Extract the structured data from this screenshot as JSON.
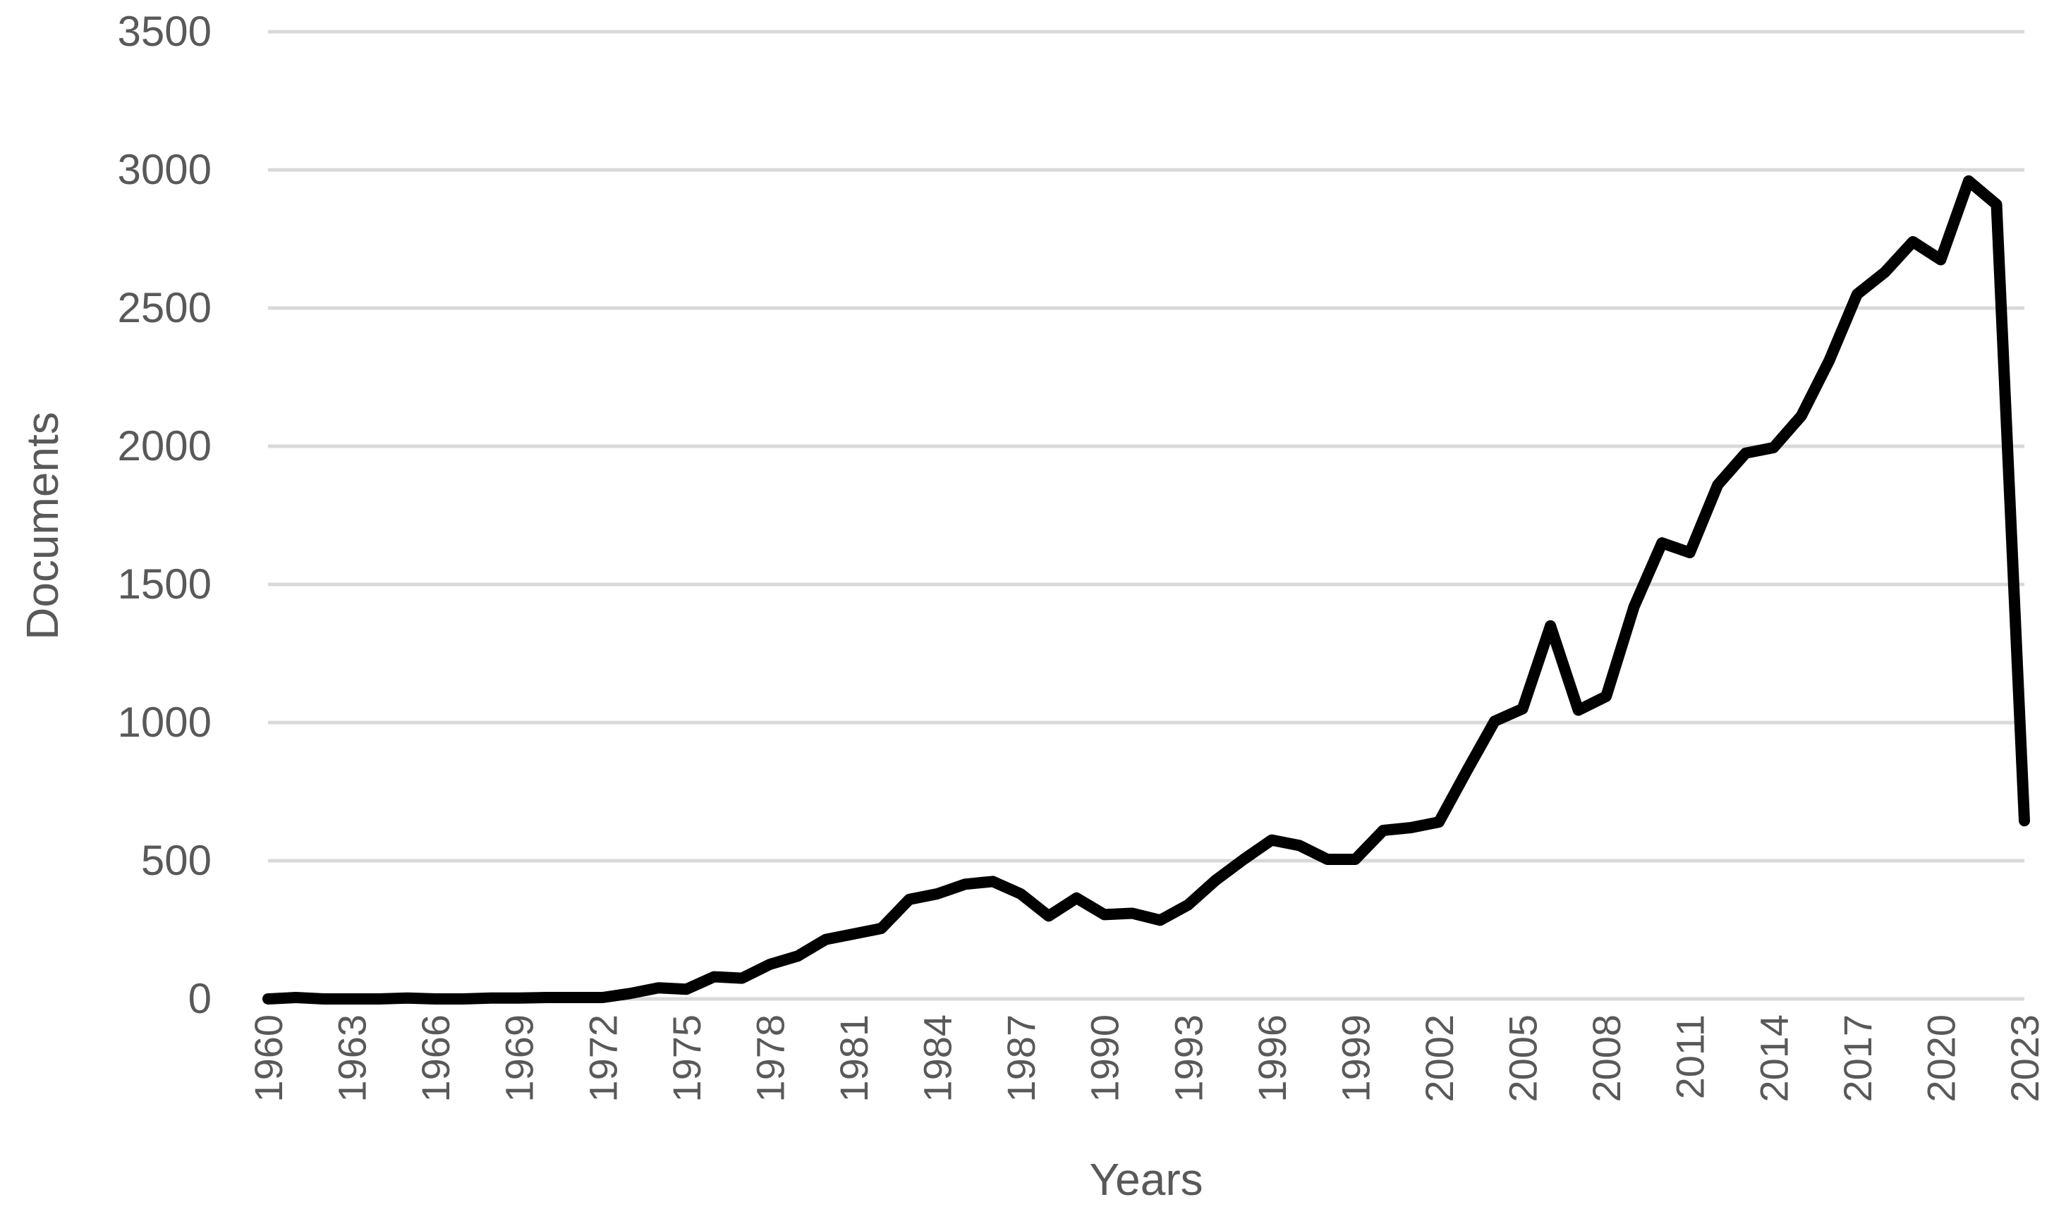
{
  "chart_data": {
    "type": "line",
    "title": "",
    "xlabel": "Years",
    "ylabel": "Documents",
    "ylim": [
      0,
      3500
    ],
    "yticks": [
      0,
      500,
      1000,
      1500,
      2000,
      2500,
      3000,
      3500
    ],
    "xtick_labels": [
      "1960",
      "1963",
      "1966",
      "1969",
      "1972",
      "1975",
      "1978",
      "1981",
      "1984",
      "1987",
      "1990",
      "1993",
      "1996",
      "1999",
      "2002",
      "2005",
      "2008",
      "2011",
      "2014",
      "2017",
      "2020",
      "2023"
    ],
    "grid": true,
    "legend": "none",
    "series_color": "#000000",
    "x": [
      1960,
      1961,
      1962,
      1963,
      1964,
      1965,
      1966,
      1967,
      1968,
      1969,
      1970,
      1971,
      1972,
      1973,
      1974,
      1975,
      1976,
      1977,
      1978,
      1979,
      1980,
      1981,
      1982,
      1983,
      1984,
      1985,
      1986,
      1987,
      1988,
      1989,
      1990,
      1991,
      1992,
      1993,
      1994,
      1995,
      1996,
      1997,
      1998,
      1999,
      2000,
      2001,
      2002,
      2003,
      2004,
      2005,
      2006,
      2007,
      2008,
      2009,
      2010,
      2011,
      2012,
      2013,
      2014,
      2015,
      2016,
      2017,
      2018,
      2019,
      2020,
      2021,
      2022,
      2023
    ],
    "series": [
      {
        "values": [
          0,
          5,
          0,
          0,
          0,
          3,
          0,
          0,
          3,
          3,
          5,
          5,
          5,
          20,
          40,
          35,
          80,
          75,
          125,
          155,
          215,
          235,
          255,
          360,
          380,
          415,
          425,
          380,
          300,
          365,
          305,
          310,
          285,
          340,
          430,
          505,
          575,
          555,
          505,
          505,
          610,
          620,
          640,
          825,
          1005,
          1050,
          1350,
          1045,
          1095,
          1420,
          1650,
          1615,
          1860,
          1975,
          1995,
          2110,
          2310,
          2550,
          2630,
          2740,
          2675,
          2960,
          2875,
          645
        ]
      }
    ]
  }
}
